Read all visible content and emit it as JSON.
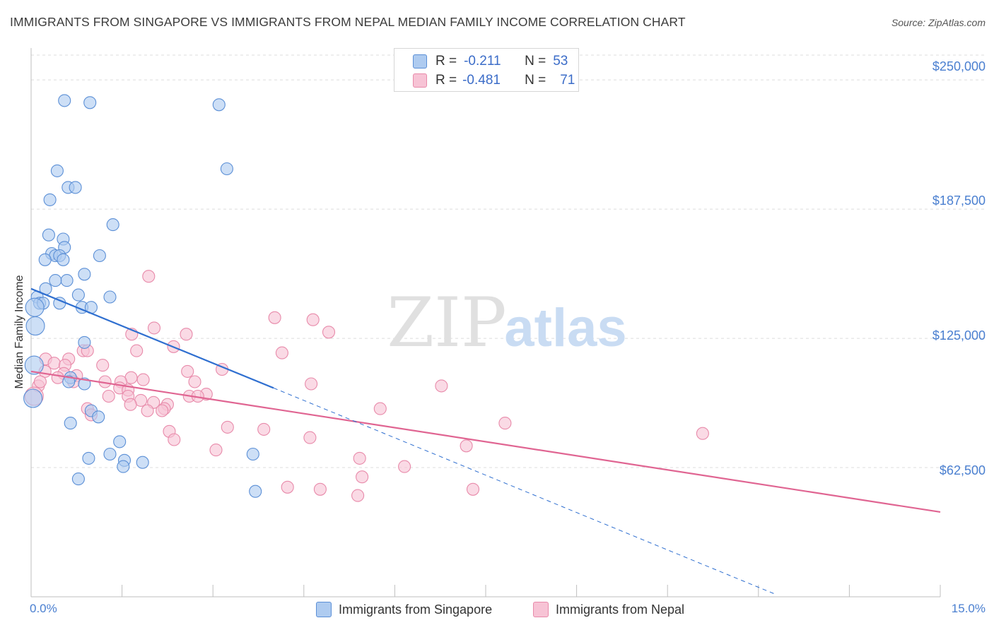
{
  "title": "IMMIGRANTS FROM SINGAPORE VS IMMIGRANTS FROM NEPAL MEDIAN FAMILY INCOME CORRELATION CHART",
  "source": "Source: ZipAtlas.com",
  "watermark": {
    "zip": "ZIP",
    "atlas": "atlas"
  },
  "colors": {
    "blue_fill": "#aecbf0",
    "blue_stroke": "#5b8fd6",
    "blue_line": "#2f6fd0",
    "pink_fill": "#f7c3d5",
    "pink_stroke": "#e88aaa",
    "pink_line": "#e06592",
    "tick_text": "#4a7fd0",
    "grid": "#dcdcdc"
  },
  "legend": {
    "rows": [
      {
        "r_label": "R =",
        "r_value": "-0.211",
        "n_label": "N =",
        "n_value": "53"
      },
      {
        "r_label": "R =",
        "r_value": "-0.481",
        "n_label": "N =",
        "n_value": "71"
      }
    ]
  },
  "bottom_legend": {
    "series1": "Immigrants from Singapore",
    "series2": "Immigrants from Nepal"
  },
  "chart_data": {
    "type": "scatter",
    "title": "IMMIGRANTS FROM SINGAPORE VS IMMIGRANTS FROM NEPAL MEDIAN FAMILY INCOME CORRELATION CHART",
    "xlabel": "",
    "ylabel": "Median Family Income",
    "xlim": [
      0,
      15
    ],
    "ylim": [
      0,
      262000
    ],
    "x_tick_labels": {
      "left": "0.0%",
      "right": "15.0%"
    },
    "y_ticks": [
      {
        "value": 62500,
        "label": "$62,500"
      },
      {
        "value": 125000,
        "label": "$125,000"
      },
      {
        "value": 187500,
        "label": "$187,500"
      },
      {
        "value": 250000,
        "label": "$250,000"
      }
    ],
    "series": [
      {
        "name": "Immigrants from Singapore",
        "color": "blue",
        "points": [
          [
            0.55,
            240000
          ],
          [
            0.97,
            239000
          ],
          [
            3.1,
            238000
          ],
          [
            3.23,
            207000
          ],
          [
            0.43,
            206000
          ],
          [
            0.61,
            198000
          ],
          [
            0.73,
            198000
          ],
          [
            0.31,
            192000
          ],
          [
            1.35,
            180000
          ],
          [
            0.29,
            175000
          ],
          [
            0.53,
            173000
          ],
          [
            0.55,
            169000
          ],
          [
            0.34,
            166000
          ],
          [
            0.4,
            165000
          ],
          [
            0.47,
            165000
          ],
          [
            1.13,
            165000
          ],
          [
            0.23,
            163000
          ],
          [
            0.53,
            163000
          ],
          [
            0.88,
            156000
          ],
          [
            0.59,
            153000
          ],
          [
            0.4,
            153000
          ],
          [
            0.24,
            149000
          ],
          [
            0.1,
            145000
          ],
          [
            0.78,
            146000
          ],
          [
            1.3,
            145000
          ],
          [
            0.14,
            142000
          ],
          [
            0.2,
            142000
          ],
          [
            0.47,
            142000
          ],
          [
            0.84,
            140000
          ],
          [
            0.99,
            140000
          ],
          [
            0.06,
            140000
          ],
          [
            0.07,
            131000
          ],
          [
            0.88,
            123000
          ],
          [
            0.05,
            112000
          ],
          [
            0.65,
            106000
          ],
          [
            0.62,
            104000
          ],
          [
            0.88,
            103000
          ],
          [
            0.99,
            90000
          ],
          [
            1.11,
            87000
          ],
          [
            0.65,
            84000
          ],
          [
            1.46,
            75000
          ],
          [
            1.3,
            69000
          ],
          [
            3.66,
            69000
          ],
          [
            0.95,
            67000
          ],
          [
            1.54,
            66000
          ],
          [
            1.84,
            65000
          ],
          [
            1.52,
            63000
          ],
          [
            0.78,
            57000
          ],
          [
            3.7,
            51000
          ],
          [
            0.03,
            96000
          ]
        ],
        "trendline": {
          "x": [
            0,
            4.0
          ],
          "y": [
            149000,
            101000
          ],
          "dashed_extension": {
            "x": [
              4.0,
              12.3
            ],
            "y": [
              101000,
              1000
            ]
          }
        }
      },
      {
        "name": "Immigrants from Nepal",
        "color": "pink",
        "points": [
          [
            1.94,
            155000
          ],
          [
            4.02,
            135000
          ],
          [
            4.65,
            134000
          ],
          [
            2.03,
            130000
          ],
          [
            4.91,
            128000
          ],
          [
            1.66,
            127000
          ],
          [
            2.56,
            127000
          ],
          [
            2.35,
            121000
          ],
          [
            0.86,
            119000
          ],
          [
            0.93,
            119000
          ],
          [
            1.74,
            119000
          ],
          [
            4.14,
            118000
          ],
          [
            0.24,
            115000
          ],
          [
            0.62,
            115000
          ],
          [
            0.38,
            113000
          ],
          [
            0.56,
            112000
          ],
          [
            1.18,
            112000
          ],
          [
            3.15,
            110000
          ],
          [
            0.23,
            109000
          ],
          [
            0.54,
            108000
          ],
          [
            0.75,
            107000
          ],
          [
            1.65,
            106000
          ],
          [
            2.58,
            109000
          ],
          [
            0.44,
            106000
          ],
          [
            1.85,
            105000
          ],
          [
            0.7,
            104000
          ],
          [
            1.22,
            104000
          ],
          [
            1.48,
            104000
          ],
          [
            2.7,
            104000
          ],
          [
            4.62,
            103000
          ],
          [
            6.77,
            102000
          ],
          [
            0.12,
            102000
          ],
          [
            1.46,
            101000
          ],
          [
            1.6,
            100000
          ],
          [
            2.89,
            98000
          ],
          [
            1.28,
            97000
          ],
          [
            1.6,
            97000
          ],
          [
            2.61,
            97000
          ],
          [
            2.75,
            97000
          ],
          [
            1.81,
            95000
          ],
          [
            2.02,
            94000
          ],
          [
            1.64,
            93000
          ],
          [
            2.25,
            93000
          ],
          [
            2.2,
            91000
          ],
          [
            1.92,
            90000
          ],
          [
            2.16,
            90000
          ],
          [
            0.93,
            91000
          ],
          [
            5.76,
            91000
          ],
          [
            0.99,
            88000
          ],
          [
            7.82,
            84000
          ],
          [
            3.24,
            82000
          ],
          [
            2.28,
            80000
          ],
          [
            3.84,
            81000
          ],
          [
            11.08,
            79000
          ],
          [
            4.6,
            77000
          ],
          [
            2.36,
            76000
          ],
          [
            7.18,
            73000
          ],
          [
            3.05,
            71000
          ],
          [
            5.42,
            67000
          ],
          [
            6.16,
            63000
          ],
          [
            5.46,
            58000
          ],
          [
            4.23,
            53000
          ],
          [
            4.77,
            52000
          ],
          [
            7.29,
            52000
          ],
          [
            5.39,
            49000
          ],
          [
            0.05,
            97000
          ],
          [
            0.15,
            104000
          ]
        ],
        "trendline": {
          "x": [
            0,
            15.0
          ],
          "y": [
            109000,
            41000
          ]
        }
      }
    ]
  }
}
